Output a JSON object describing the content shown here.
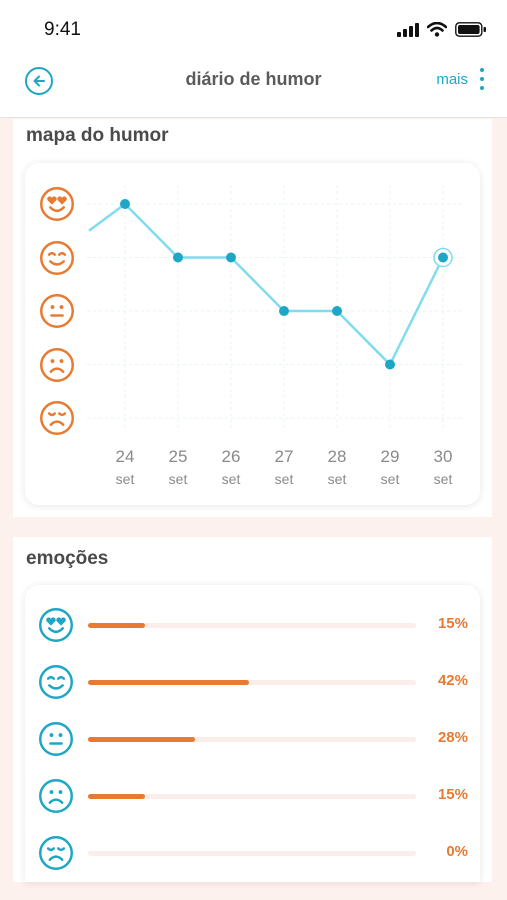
{
  "status_bar": {
    "time": "9:41"
  },
  "nav": {
    "title": "diário de humor",
    "more_label": "mais"
  },
  "mood_map": {
    "title": "mapa do humor",
    "levels": [
      "heart-eyes-face-icon",
      "smiling-face-icon",
      "neutral-face-icon",
      "frowning-face-icon",
      "sad-face-icon"
    ]
  },
  "emotions": {
    "title": "emoções",
    "rows": [
      {
        "icon": "heart-eyes-face-icon",
        "value": 15,
        "label": "15%"
      },
      {
        "icon": "smiling-face-icon",
        "value": 42,
        "label": "42%"
      },
      {
        "icon": "neutral-face-icon",
        "value": 28,
        "label": "28%"
      },
      {
        "icon": "frowning-face-icon",
        "value": 15,
        "label": "15%"
      },
      {
        "icon": "sad-face-icon",
        "value": 0,
        "label": "0%"
      }
    ]
  },
  "colors": {
    "accent": "#1ea7c4",
    "line": "#7fdcef",
    "orange": "#e87a31",
    "background": "#fdf1ed"
  },
  "chart_data": {
    "type": "line",
    "title": "mapa do humor",
    "x": [
      "24",
      "25",
      "26",
      "27",
      "28",
      "29",
      "30"
    ],
    "x_sublabel": [
      "set",
      "set",
      "set",
      "set",
      "set",
      "set",
      "set"
    ],
    "y_levels": 5,
    "y_min": 1,
    "y_max": 5,
    "series": [
      {
        "values": [
          5,
          4,
          4,
          3,
          3,
          2,
          4
        ],
        "highlight_last": true
      }
    ],
    "line_enters_from_left_at": 4.5,
    "grid": true
  }
}
